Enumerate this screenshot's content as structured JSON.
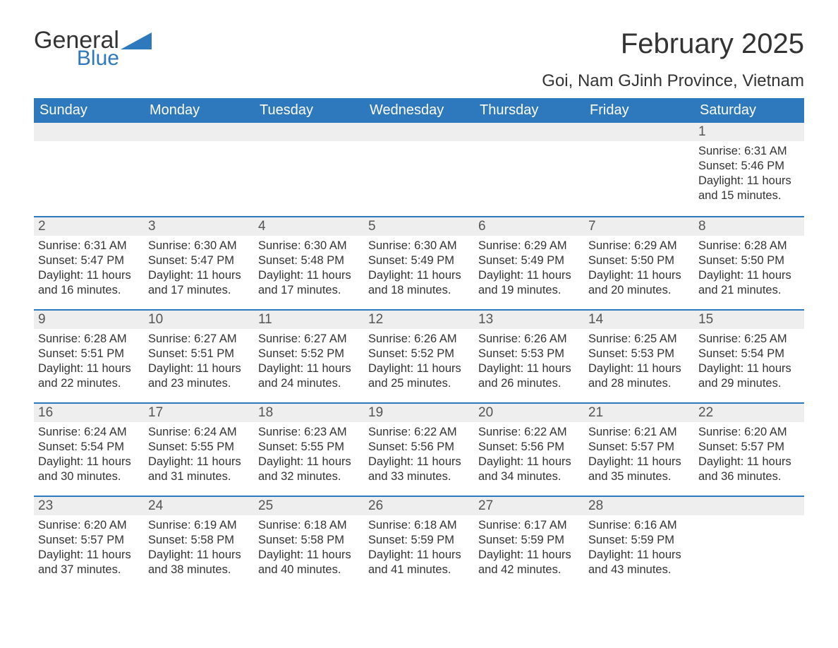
{
  "logo": {
    "text_general": "General",
    "text_blue": "Blue",
    "flag_color": "#2e78bd"
  },
  "header": {
    "month_title": "February 2025",
    "location": "Goi, Nam GJinh Province, Vietnam"
  },
  "calendar": {
    "header_bg": "#2e78bd",
    "header_fg": "#ffffff",
    "daynum_bg": "#eeeeee",
    "rule_color": "#2e78bd",
    "day_headers": [
      "Sunday",
      "Monday",
      "Tuesday",
      "Wednesday",
      "Thursday",
      "Friday",
      "Saturday"
    ],
    "weeks": [
      [
        {
          "n": "",
          "sunrise": "",
          "sunset": "",
          "daylight": ""
        },
        {
          "n": "",
          "sunrise": "",
          "sunset": "",
          "daylight": ""
        },
        {
          "n": "",
          "sunrise": "",
          "sunset": "",
          "daylight": ""
        },
        {
          "n": "",
          "sunrise": "",
          "sunset": "",
          "daylight": ""
        },
        {
          "n": "",
          "sunrise": "",
          "sunset": "",
          "daylight": ""
        },
        {
          "n": "",
          "sunrise": "",
          "sunset": "",
          "daylight": ""
        },
        {
          "n": "1",
          "sunrise": "Sunrise: 6:31 AM",
          "sunset": "Sunset: 5:46 PM",
          "daylight": "Daylight: 11 hours and 15 minutes."
        }
      ],
      [
        {
          "n": "2",
          "sunrise": "Sunrise: 6:31 AM",
          "sunset": "Sunset: 5:47 PM",
          "daylight": "Daylight: 11 hours and 16 minutes."
        },
        {
          "n": "3",
          "sunrise": "Sunrise: 6:30 AM",
          "sunset": "Sunset: 5:47 PM",
          "daylight": "Daylight: 11 hours and 17 minutes."
        },
        {
          "n": "4",
          "sunrise": "Sunrise: 6:30 AM",
          "sunset": "Sunset: 5:48 PM",
          "daylight": "Daylight: 11 hours and 17 minutes."
        },
        {
          "n": "5",
          "sunrise": "Sunrise: 6:30 AM",
          "sunset": "Sunset: 5:49 PM",
          "daylight": "Daylight: 11 hours and 18 minutes."
        },
        {
          "n": "6",
          "sunrise": "Sunrise: 6:29 AM",
          "sunset": "Sunset: 5:49 PM",
          "daylight": "Daylight: 11 hours and 19 minutes."
        },
        {
          "n": "7",
          "sunrise": "Sunrise: 6:29 AM",
          "sunset": "Sunset: 5:50 PM",
          "daylight": "Daylight: 11 hours and 20 minutes."
        },
        {
          "n": "8",
          "sunrise": "Sunrise: 6:28 AM",
          "sunset": "Sunset: 5:50 PM",
          "daylight": "Daylight: 11 hours and 21 minutes."
        }
      ],
      [
        {
          "n": "9",
          "sunrise": "Sunrise: 6:28 AM",
          "sunset": "Sunset: 5:51 PM",
          "daylight": "Daylight: 11 hours and 22 minutes."
        },
        {
          "n": "10",
          "sunrise": "Sunrise: 6:27 AM",
          "sunset": "Sunset: 5:51 PM",
          "daylight": "Daylight: 11 hours and 23 minutes."
        },
        {
          "n": "11",
          "sunrise": "Sunrise: 6:27 AM",
          "sunset": "Sunset: 5:52 PM",
          "daylight": "Daylight: 11 hours and 24 minutes."
        },
        {
          "n": "12",
          "sunrise": "Sunrise: 6:26 AM",
          "sunset": "Sunset: 5:52 PM",
          "daylight": "Daylight: 11 hours and 25 minutes."
        },
        {
          "n": "13",
          "sunrise": "Sunrise: 6:26 AM",
          "sunset": "Sunset: 5:53 PM",
          "daylight": "Daylight: 11 hours and 26 minutes."
        },
        {
          "n": "14",
          "sunrise": "Sunrise: 6:25 AM",
          "sunset": "Sunset: 5:53 PM",
          "daylight": "Daylight: 11 hours and 28 minutes."
        },
        {
          "n": "15",
          "sunrise": "Sunrise: 6:25 AM",
          "sunset": "Sunset: 5:54 PM",
          "daylight": "Daylight: 11 hours and 29 minutes."
        }
      ],
      [
        {
          "n": "16",
          "sunrise": "Sunrise: 6:24 AM",
          "sunset": "Sunset: 5:54 PM",
          "daylight": "Daylight: 11 hours and 30 minutes."
        },
        {
          "n": "17",
          "sunrise": "Sunrise: 6:24 AM",
          "sunset": "Sunset: 5:55 PM",
          "daylight": "Daylight: 11 hours and 31 minutes."
        },
        {
          "n": "18",
          "sunrise": "Sunrise: 6:23 AM",
          "sunset": "Sunset: 5:55 PM",
          "daylight": "Daylight: 11 hours and 32 minutes."
        },
        {
          "n": "19",
          "sunrise": "Sunrise: 6:22 AM",
          "sunset": "Sunset: 5:56 PM",
          "daylight": "Daylight: 11 hours and 33 minutes."
        },
        {
          "n": "20",
          "sunrise": "Sunrise: 6:22 AM",
          "sunset": "Sunset: 5:56 PM",
          "daylight": "Daylight: 11 hours and 34 minutes."
        },
        {
          "n": "21",
          "sunrise": "Sunrise: 6:21 AM",
          "sunset": "Sunset: 5:57 PM",
          "daylight": "Daylight: 11 hours and 35 minutes."
        },
        {
          "n": "22",
          "sunrise": "Sunrise: 6:20 AM",
          "sunset": "Sunset: 5:57 PM",
          "daylight": "Daylight: 11 hours and 36 minutes."
        }
      ],
      [
        {
          "n": "23",
          "sunrise": "Sunrise: 6:20 AM",
          "sunset": "Sunset: 5:57 PM",
          "daylight": "Daylight: 11 hours and 37 minutes."
        },
        {
          "n": "24",
          "sunrise": "Sunrise: 6:19 AM",
          "sunset": "Sunset: 5:58 PM",
          "daylight": "Daylight: 11 hours and 38 minutes."
        },
        {
          "n": "25",
          "sunrise": "Sunrise: 6:18 AM",
          "sunset": "Sunset: 5:58 PM",
          "daylight": "Daylight: 11 hours and 40 minutes."
        },
        {
          "n": "26",
          "sunrise": "Sunrise: 6:18 AM",
          "sunset": "Sunset: 5:59 PM",
          "daylight": "Daylight: 11 hours and 41 minutes."
        },
        {
          "n": "27",
          "sunrise": "Sunrise: 6:17 AM",
          "sunset": "Sunset: 5:59 PM",
          "daylight": "Daylight: 11 hours and 42 minutes."
        },
        {
          "n": "28",
          "sunrise": "Sunrise: 6:16 AM",
          "sunset": "Sunset: 5:59 PM",
          "daylight": "Daylight: 11 hours and 43 minutes."
        },
        {
          "n": "",
          "sunrise": "",
          "sunset": "",
          "daylight": ""
        }
      ]
    ]
  }
}
